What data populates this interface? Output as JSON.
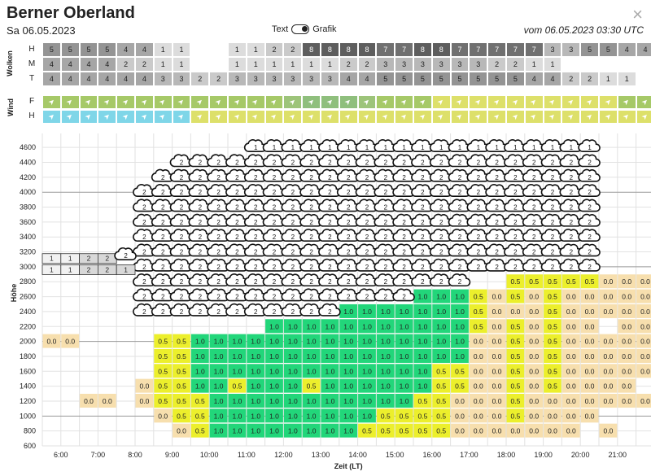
{
  "header": {
    "title": "Berner Oberland",
    "date": "Sa 06.05.2023",
    "toggle_left": "Text",
    "toggle_right": "Grafik",
    "valid": "vom 06.05.2023 03:30 UTC",
    "close_glyph": "×"
  },
  "clouds": {
    "group_label": "Wolken",
    "rows": [
      {
        "label": "H",
        "values": [
          "5",
          "5",
          "5",
          "5",
          "4",
          "4",
          "1",
          "1",
          "",
          "",
          "1",
          "1",
          "2",
          "2",
          "8",
          "8",
          "8",
          "8",
          "7",
          "7",
          "8",
          "8",
          "7",
          "7",
          "7",
          "7",
          "7",
          "3",
          "3",
          "5",
          "5",
          "4",
          "4"
        ]
      },
      {
        "label": "M",
        "values": [
          "4",
          "4",
          "4",
          "4",
          "2",
          "2",
          "1",
          "1",
          "",
          "",
          "1",
          "1",
          "1",
          "1",
          "1",
          "1",
          "2",
          "2",
          "3",
          "3",
          "3",
          "3",
          "3",
          "3",
          "2",
          "2",
          "1",
          "1",
          "",
          "",
          "",
          "",
          ""
        ]
      },
      {
        "label": "T",
        "values": [
          "4",
          "4",
          "4",
          "4",
          "4",
          "4",
          "3",
          "3",
          "2",
          "2",
          "3",
          "3",
          "3",
          "3",
          "3",
          "3",
          "4",
          "4",
          "5",
          "5",
          "5",
          "5",
          "5",
          "5",
          "5",
          "5",
          "4",
          "4",
          "2",
          "2",
          "1",
          "1",
          ""
        ]
      }
    ]
  },
  "wind": {
    "group_label": "Wind",
    "rows": [
      {
        "label": "F",
        "colors": [
          "#a6c968",
          "#a6c968",
          "#a6c968",
          "#a6c968",
          "#a6c968",
          "#a6c968",
          "#a6c968",
          "#a6c968",
          "#a6c968",
          "#a6c968",
          "#a6c968",
          "#a6c968",
          "#a6c968",
          "#9dc47a",
          "#8fbf7d",
          "#8fbf7d",
          "#8fbf7d",
          "#9dc47a",
          "#a6c968",
          "#a6c968",
          "#a6c968",
          "#dde06a",
          "#dde06a",
          "#dde06a",
          "#dde06a",
          "#dde06a",
          "#dde06a",
          "#dde06a",
          "#dde06a",
          "#dde06a",
          "#dde06a",
          "#a6c968",
          "#a6c968"
        ]
      },
      {
        "label": "H",
        "colors": [
          "#7fd6e8",
          "#7fd6e8",
          "#7fd6e8",
          "#7fd6e8",
          "#7fd6e8",
          "#7fd6e8",
          "#7fd6e8",
          "#7fd6e8",
          "#dde06a",
          "#dde06a",
          "#dde06a",
          "#dde06a",
          "#dde06a",
          "#dde06a",
          "#dde06a",
          "#dde06a",
          "#dde06a",
          "#dde06a",
          "#dde06a",
          "#dde06a",
          "#dde06a",
          "#dde06a",
          "#dde06a",
          "#dde06a",
          "#dde06a",
          "#dde06a",
          "#dde06a",
          "#dde06a",
          "#dde06a",
          "#dde06a",
          "#dde06a",
          "#dde06a",
          "#dde06a"
        ]
      }
    ],
    "arrow_icon": "wind-arrow-icon"
  },
  "chart_data": {
    "type": "heatmap",
    "ylabel": "Höhe",
    "xlabel": "Zeit (LT)",
    "y_ticks": [
      600,
      800,
      1000,
      1200,
      1400,
      1600,
      1800,
      2000,
      2200,
      2400,
      2600,
      2800,
      3000,
      3200,
      3400,
      3600,
      3800,
      4000,
      4200,
      4400,
      4600
    ],
    "x_ticks": [
      "6:00",
      "7:00",
      "8:00",
      "9:00",
      "10:00",
      "11:00",
      "12:00",
      "13:00",
      "14:00",
      "15:00",
      "16:00",
      "17:00",
      "18:00",
      "19:00",
      "20:00",
      "21:00"
    ],
    "thermal_rows": [
      {
        "alt": 2800,
        "values": [
          "",
          "",
          "",
          "",
          "",
          "",
          "",
          "",
          "",
          "",
          "",
          "",
          "",
          "",
          "",
          "",
          "",
          "",
          "",
          "",
          "",
          "",
          "",
          "",
          "",
          "0.5",
          "0.5",
          "0.5",
          "0.5",
          "0.5",
          "0.0",
          "0.0",
          "0.0"
        ]
      },
      {
        "alt": 2600,
        "values": [
          "",
          "",
          "",
          "",
          "",
          "",
          "",
          "",
          "",
          "",
          "",
          "",
          "",
          "",
          "",
          "",
          "",
          "",
          "",
          "",
          "1.0",
          "1.0",
          "1.0",
          "0.5",
          "0.0",
          "0.5",
          "0.0",
          "0.5",
          "0.0",
          "0.0",
          "0.0",
          "0.0",
          "0.0"
        ]
      },
      {
        "alt": 2400,
        "values": [
          "",
          "",
          "",
          "",
          "",
          "",
          "",
          "",
          "",
          "",
          "",
          "",
          "",
          "",
          "",
          "",
          "1.0",
          "1.0",
          "1.0",
          "1.0",
          "1.0",
          "1.0",
          "1.0",
          "0.5",
          "0.0",
          "0.0",
          "0.0",
          "0.5",
          "0.0",
          "0.0",
          "0.0",
          "0.0",
          "0.0"
        ]
      },
      {
        "alt": 2200,
        "values": [
          "",
          "",
          "",
          "",
          "",
          "",
          "",
          "",
          "",
          "",
          "",
          "",
          "1.0",
          "1.0",
          "1.0",
          "1.0",
          "1.0",
          "1.0",
          "1.0",
          "1.0",
          "1.0",
          "1.0",
          "1.0",
          "0.5",
          "0.0",
          "0.5",
          "0.0",
          "0.5",
          "0.0",
          "0.0",
          "",
          "0.0",
          "0.0"
        ]
      },
      {
        "alt": 2000,
        "values": [
          "0.0",
          "0.0",
          "",
          "",
          "",
          "",
          "0.5",
          "0.5",
          "1.0",
          "1.0",
          "1.0",
          "1.0",
          "1.0",
          "1.0",
          "1.0",
          "1.0",
          "1.0",
          "1.0",
          "1.0",
          "1.0",
          "1.0",
          "1.0",
          "1.0",
          "0.0",
          "0.0",
          "0.5",
          "0.0",
          "0.5",
          "0.0",
          "0.0",
          "0.0",
          "0.0",
          "0.0"
        ]
      },
      {
        "alt": 1800,
        "values": [
          "",
          "",
          "",
          "",
          "",
          "",
          "0.5",
          "0.5",
          "1.0",
          "1.0",
          "1.0",
          "1.0",
          "1.0",
          "1.0",
          "1.0",
          "1.0",
          "1.0",
          "1.0",
          "1.0",
          "1.0",
          "1.0",
          "1.0",
          "1.0",
          "0.0",
          "0.0",
          "0.5",
          "0.0",
          "0.5",
          "0.0",
          "0.0",
          "0.0",
          "0.0",
          "0.0"
        ]
      },
      {
        "alt": 1600,
        "values": [
          "",
          "",
          "",
          "",
          "",
          "",
          "0.5",
          "0.5",
          "1.0",
          "1.0",
          "1.0",
          "1.0",
          "1.0",
          "1.0",
          "1.0",
          "1.0",
          "1.0",
          "1.0",
          "1.0",
          "1.0",
          "1.0",
          "0.5",
          "0.5",
          "0.0",
          "0.0",
          "0.5",
          "0.0",
          "0.5",
          "0.0",
          "0.0",
          "0.0",
          "0.0",
          "0.0"
        ]
      },
      {
        "alt": 1400,
        "values": [
          "",
          "",
          "",
          "",
          "",
          "0.0",
          "0.5",
          "0.5",
          "1.0",
          "1.0",
          "0.5",
          "1.0",
          "1.0",
          "1.0",
          "0.5",
          "1.0",
          "1.0",
          "1.0",
          "1.0",
          "1.0",
          "1.0",
          "0.5",
          "0.5",
          "0.0",
          "0.0",
          "0.5",
          "0.0",
          "0.5",
          "0.0",
          "0.0",
          "0.0",
          "0.0",
          ""
        ]
      },
      {
        "alt": 1200,
        "values": [
          "",
          "",
          "0.0",
          "0.0",
          "",
          "0.0",
          "0.5",
          "0.5",
          "0.5",
          "1.0",
          "1.0",
          "1.0",
          "1.0",
          "1.0",
          "1.0",
          "1.0",
          "1.0",
          "1.0",
          "1.0",
          "1.0",
          "0.5",
          "0.5",
          "0.0",
          "0.0",
          "0.0",
          "0.5",
          "0.0",
          "0.0",
          "0.0",
          "0.0",
          "0.0",
          "0.0",
          "0.0"
        ]
      },
      {
        "alt": 1000,
        "values": [
          "",
          "",
          "",
          "",
          "",
          "",
          "0.0",
          "0.5",
          "0.5",
          "1.0",
          "1.0",
          "1.0",
          "1.0",
          "1.0",
          "1.0",
          "1.0",
          "1.0",
          "1.0",
          "0.5",
          "0.5",
          "0.5",
          "0.5",
          "0.0",
          "0.0",
          "0.0",
          "0.5",
          "0.0",
          "0.0",
          "0.0",
          "0.0",
          "",
          "",
          ""
        ]
      },
      {
        "alt": 800,
        "values": [
          "",
          "",
          "",
          "",
          "",
          "",
          "",
          "0.0",
          "0.5",
          "1.0",
          "1.0",
          "1.0",
          "1.0",
          "1.0",
          "1.0",
          "1.0",
          "1.0",
          "0.5",
          "0.5",
          "0.5",
          "0.5",
          "0.5",
          "0.0",
          "0.0",
          "0.0",
          "0.0",
          "0.0",
          "0.0",
          "0.0",
          "",
          "0.0",
          "",
          ""
        ]
      }
    ],
    "color_scale": {
      "1.0": "#22d67a",
      "0.5": "#ecef2c",
      "0.0": "#f7dfae"
    },
    "cloud_layer_label": "2",
    "cloud_top_label": "1",
    "cloud_strip_upper": [
      "1",
      "1",
      "2",
      "2"
    ],
    "cloud_strip_lower": [
      "1",
      "1",
      "2",
      "2",
      "1"
    ]
  }
}
